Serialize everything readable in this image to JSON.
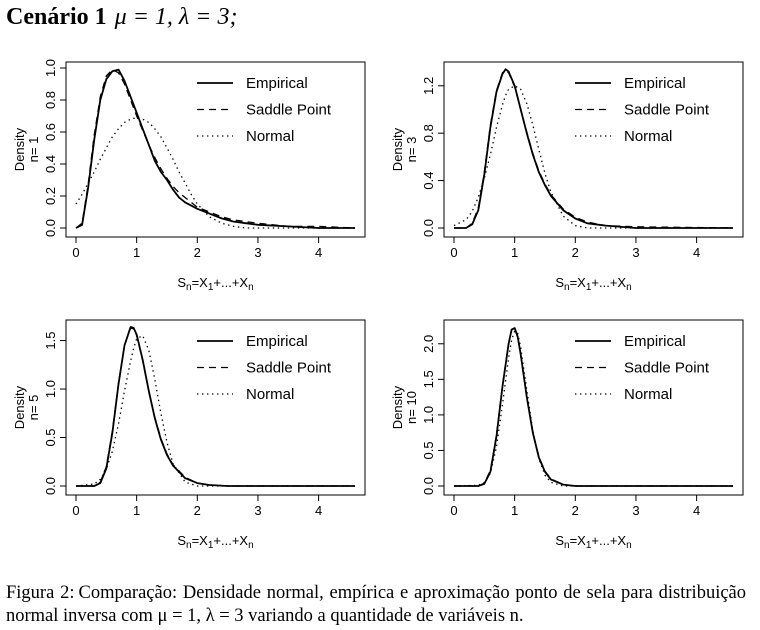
{
  "heading": {
    "scenario": "Cenário 1",
    "params": "μ = 1, λ = 3;"
  },
  "legend_labels": [
    "Empirical",
    "Saddle Point",
    "Normal"
  ],
  "chart_data": [
    {
      "type": "line",
      "panel_label": "n= 1",
      "xlabel": "Sn=X1+...+Xn",
      "ylabel": "Density",
      "xlim": [
        0,
        4.6
      ],
      "ylim": [
        0,
        1.0
      ],
      "xticks": [
        0,
        1,
        2,
        3,
        4
      ],
      "yticks": [
        0.0,
        0.2,
        0.4,
        0.6,
        0.8,
        1.0
      ],
      "ytick_labels": [
        "0.0",
        "0.2",
        "0.4",
        "0.6",
        "0.8",
        "1.0"
      ],
      "legend": "top-right",
      "x": [
        0,
        0.1,
        0.2,
        0.3,
        0.4,
        0.5,
        0.6,
        0.7,
        0.8,
        0.9,
        1.0,
        1.1,
        1.2,
        1.3,
        1.4,
        1.5,
        1.6,
        1.7,
        1.8,
        1.9,
        2.0,
        2.2,
        2.4,
        2.6,
        2.8,
        3.0,
        3.5,
        4.0,
        4.6
      ],
      "series": [
        {
          "name": "Empirical",
          "style": "solid",
          "values": [
            0.0,
            0.02,
            0.25,
            0.55,
            0.8,
            0.93,
            0.98,
            0.99,
            0.92,
            0.82,
            0.72,
            0.62,
            0.52,
            0.42,
            0.35,
            0.3,
            0.24,
            0.19,
            0.16,
            0.14,
            0.12,
            0.09,
            0.06,
            0.04,
            0.03,
            0.02,
            0.01,
            0.0,
            0.0
          ]
        },
        {
          "name": "Saddle Point",
          "style": "dashed",
          "values": [
            0.0,
            0.03,
            0.27,
            0.58,
            0.82,
            0.95,
            0.99,
            0.97,
            0.9,
            0.8,
            0.7,
            0.61,
            0.52,
            0.44,
            0.37,
            0.31,
            0.26,
            0.22,
            0.19,
            0.16,
            0.13,
            0.1,
            0.07,
            0.05,
            0.04,
            0.03,
            0.01,
            0.01,
            0.0
          ]
        },
        {
          "name": "Normal",
          "style": "dotted",
          "values": [
            0.15,
            0.21,
            0.28,
            0.35,
            0.43,
            0.5,
            0.57,
            0.62,
            0.66,
            0.68,
            0.69,
            0.68,
            0.66,
            0.62,
            0.57,
            0.5,
            0.43,
            0.35,
            0.28,
            0.21,
            0.15,
            0.07,
            0.03,
            0.01,
            0.0,
            0.0,
            0.0,
            0.0,
            0.0
          ]
        }
      ]
    },
    {
      "type": "line",
      "panel_label": "n= 3",
      "xlabel": "Sn=X1+...+Xn",
      "ylabel": "Density",
      "xlim": [
        0,
        4.6
      ],
      "ylim": [
        0,
        1.35
      ],
      "xticks": [
        0,
        1,
        2,
        3,
        4
      ],
      "yticks": [
        0.0,
        0.4,
        0.8,
        1.2
      ],
      "ytick_labels": [
        "0.0",
        "0.4",
        "0.8",
        "1.2"
      ],
      "legend": "top-right",
      "x": [
        0,
        0.2,
        0.3,
        0.4,
        0.5,
        0.6,
        0.7,
        0.8,
        0.85,
        0.9,
        1.0,
        1.1,
        1.2,
        1.3,
        1.4,
        1.5,
        1.6,
        1.8,
        2.0,
        2.2,
        2.5,
        3.0,
        4.6
      ],
      "series": [
        {
          "name": "Empirical",
          "style": "solid",
          "values": [
            0.0,
            0.0,
            0.03,
            0.15,
            0.45,
            0.85,
            1.15,
            1.3,
            1.34,
            1.32,
            1.2,
            1.0,
            0.8,
            0.62,
            0.47,
            0.36,
            0.27,
            0.15,
            0.08,
            0.04,
            0.02,
            0.0,
            0.0
          ]
        },
        {
          "name": "Saddle Point",
          "style": "dashed",
          "values": [
            0.0,
            0.0,
            0.04,
            0.17,
            0.47,
            0.87,
            1.16,
            1.31,
            1.33,
            1.31,
            1.19,
            1.0,
            0.81,
            0.63,
            0.48,
            0.37,
            0.28,
            0.16,
            0.09,
            0.05,
            0.02,
            0.01,
            0.0
          ]
        },
        {
          "name": "Normal",
          "style": "dotted",
          "values": [
            0.02,
            0.07,
            0.14,
            0.26,
            0.42,
            0.62,
            0.85,
            1.04,
            1.12,
            1.17,
            1.2,
            1.17,
            1.05,
            0.87,
            0.66,
            0.46,
            0.3,
            0.1,
            0.02,
            0.0,
            0.0,
            0.0,
            0.0
          ]
        }
      ]
    },
    {
      "type": "line",
      "panel_label": "n= 5",
      "xlabel": "Sn=X1+...+Xn",
      "ylabel": "Density",
      "xlim": [
        0,
        4.6
      ],
      "ylim": [
        0,
        1.65
      ],
      "xticks": [
        0,
        1,
        2,
        3,
        4
      ],
      "yticks": [
        0.0,
        0.5,
        1.0,
        1.5
      ],
      "ytick_labels": [
        "0.0",
        "0.5",
        "1.0",
        "1.5"
      ],
      "legend": "top-right",
      "x": [
        0,
        0.3,
        0.4,
        0.5,
        0.6,
        0.7,
        0.8,
        0.9,
        0.95,
        1.0,
        1.1,
        1.2,
        1.3,
        1.4,
        1.5,
        1.6,
        1.8,
        2.0,
        2.2,
        2.5,
        3.0,
        4.6
      ],
      "series": [
        {
          "name": "Empirical",
          "style": "solid",
          "values": [
            0.0,
            0.0,
            0.03,
            0.18,
            0.55,
            1.05,
            1.45,
            1.64,
            1.63,
            1.56,
            1.3,
            0.98,
            0.7,
            0.48,
            0.32,
            0.21,
            0.08,
            0.03,
            0.01,
            0.0,
            0.0,
            0.0
          ]
        },
        {
          "name": "Saddle Point",
          "style": "dashed",
          "values": [
            0.0,
            0.0,
            0.04,
            0.2,
            0.57,
            1.06,
            1.45,
            1.63,
            1.62,
            1.55,
            1.29,
            0.98,
            0.71,
            0.49,
            0.33,
            0.22,
            0.09,
            0.03,
            0.01,
            0.0,
            0.0,
            0.0
          ]
        },
        {
          "name": "Normal",
          "style": "dotted",
          "values": [
            0.0,
            0.02,
            0.07,
            0.17,
            0.36,
            0.64,
            0.98,
            1.29,
            1.42,
            1.52,
            1.55,
            1.4,
            1.1,
            0.75,
            0.45,
            0.23,
            0.04,
            0.0,
            0.0,
            0.0,
            0.0,
            0.0
          ]
        }
      ]
    },
    {
      "type": "line",
      "panel_label": "n= 10",
      "xlabel": "Sn=X1+...+Xn",
      "ylabel": "Density",
      "xlim": [
        0,
        4.6
      ],
      "ylim": [
        0,
        2.25
      ],
      "xticks": [
        0,
        1,
        2,
        3,
        4
      ],
      "yticks": [
        0.0,
        0.5,
        1.0,
        1.5,
        2.0
      ],
      "ytick_labels": [
        "0.0",
        "0.5",
        "1.0",
        "1.5",
        "2.0"
      ],
      "legend": "top-right",
      "x": [
        0,
        0.4,
        0.5,
        0.6,
        0.7,
        0.8,
        0.9,
        0.95,
        1.0,
        1.05,
        1.1,
        1.2,
        1.3,
        1.4,
        1.5,
        1.6,
        1.8,
        2.0,
        4.6
      ],
      "series": [
        {
          "name": "Empirical",
          "style": "solid",
          "values": [
            0.0,
            0.0,
            0.03,
            0.2,
            0.7,
            1.4,
            2.0,
            2.2,
            2.22,
            2.1,
            1.85,
            1.25,
            0.75,
            0.4,
            0.2,
            0.09,
            0.02,
            0.0,
            0.0
          ]
        },
        {
          "name": "Saddle Point",
          "style": "dashed",
          "values": [
            0.0,
            0.0,
            0.04,
            0.22,
            0.72,
            1.42,
            2.0,
            2.19,
            2.21,
            2.09,
            1.84,
            1.25,
            0.76,
            0.41,
            0.21,
            0.1,
            0.02,
            0.0,
            0.0
          ]
        },
        {
          "name": "Normal",
          "style": "dotted",
          "values": [
            0.0,
            0.01,
            0.05,
            0.18,
            0.55,
            1.15,
            1.8,
            2.05,
            2.18,
            2.15,
            1.95,
            1.35,
            0.78,
            0.38,
            0.15,
            0.05,
            0.0,
            0.0,
            0.0
          ]
        }
      ]
    }
  ],
  "caption": {
    "label": "Figura 2:",
    "text": "Comparação: Densidade normal, empírica e aproximação ponto de sela para distribuição normal inversa com μ = 1, λ = 3 variando a quantidade de variáveis n."
  }
}
